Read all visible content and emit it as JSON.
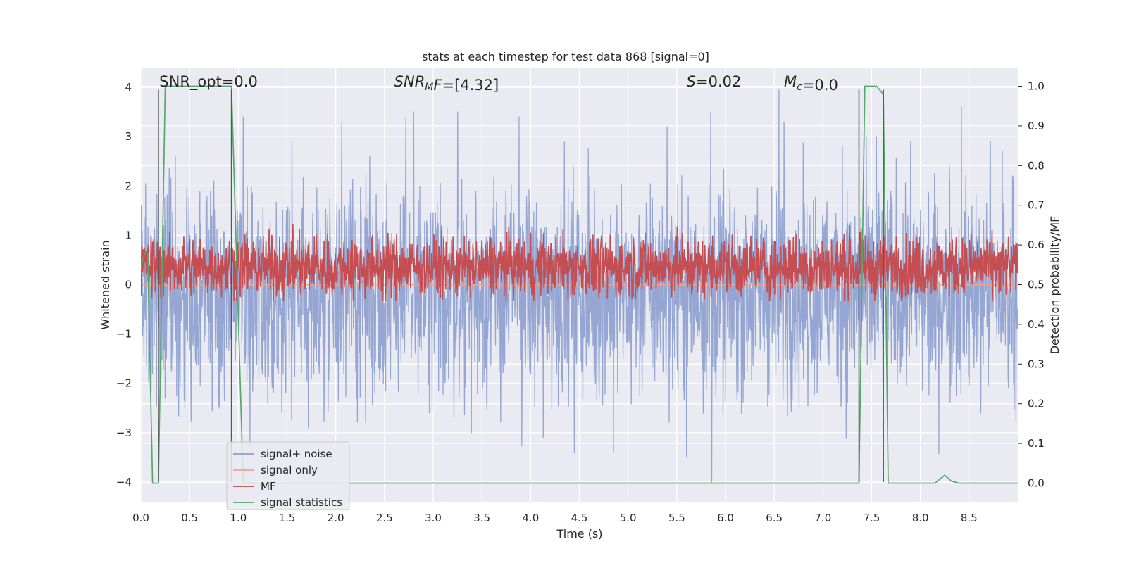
{
  "chart_data": {
    "type": "line",
    "title": "stats at each timestep for test data 868 [signal=0]",
    "xlabel": "Time (s)",
    "ylabel": "Whitened strain",
    "ylabel_right": "Detection probability/MF",
    "xlim": [
      0,
      9
    ],
    "ylim": [
      -4.4,
      4.4
    ],
    "ylim_right": [
      -0.047,
      1.047
    ],
    "x_ticks": [
      0.0,
      0.5,
      1.0,
      1.5,
      2.0,
      2.5,
      3.0,
      3.5,
      4.0,
      4.5,
      5.0,
      5.5,
      6.0,
      6.5,
      7.0,
      7.5,
      8.0,
      8.5
    ],
    "x_tick_labels": [
      "0.0",
      "0.5",
      "1.0",
      "1.5",
      "2.0",
      "2.5",
      "3.0",
      "3.5",
      "4.0",
      "4.5",
      "5.0",
      "5.5",
      "6.0",
      "6.5",
      "7.0",
      "7.5",
      "8.0",
      "8.5"
    ],
    "y_ticks": [
      -4,
      -3,
      -2,
      -1,
      0,
      1,
      2,
      3,
      4
    ],
    "y_tick_labels": [
      "−4",
      "−3",
      "−2",
      "−1",
      "0",
      "1",
      "2",
      "3",
      "4"
    ],
    "y_ticks_right": [
      0.0,
      0.1,
      0.2,
      0.3,
      0.4,
      0.5,
      0.6,
      0.7,
      0.8,
      0.9,
      1.0
    ],
    "y_tick_labels_right": [
      "0.0",
      "0.1",
      "0.2",
      "0.3",
      "0.4",
      "0.5",
      "0.6",
      "0.7",
      "0.8",
      "0.9",
      "1.0"
    ],
    "grid": true,
    "legend_position": "lower-left",
    "annotations": [
      {
        "id": "snr-opt",
        "plain": "SNR_opt=0.0",
        "x": 0.19
      },
      {
        "id": "snr-mf",
        "sym": "SNR",
        "sub": "M",
        "sym2": "F",
        "rest": "=[4.32]",
        "x": 2.6
      },
      {
        "id": "s-value",
        "sym": "S",
        "rest": "=0.02",
        "x": 5.6
      },
      {
        "id": "mc-value",
        "sym": "M",
        "sub": "c",
        "rest": "=0.0",
        "x": 6.6
      }
    ],
    "vlines": [
      0.18,
      0.93,
      7.37,
      7.62
    ],
    "series": [
      {
        "name": "signal+ noise",
        "color": "#8c9fcf",
        "axis": "left",
        "style": "noise",
        "center": -0.15,
        "spread": 1.05,
        "spikes": [
          [
            0.05,
            2.05
          ],
          [
            0.25,
            -2.3
          ],
          [
            0.45,
            -2.5
          ],
          [
            0.75,
            2.1
          ],
          [
            1.05,
            3.4
          ],
          [
            1.12,
            -3.3
          ],
          [
            1.55,
            2.9
          ],
          [
            1.72,
            -2.9
          ],
          [
            2.06,
            3.3
          ],
          [
            2.35,
            2.6
          ],
          [
            2.72,
            3.4
          ],
          [
            2.8,
            3.5
          ],
          [
            2.96,
            -2.6
          ],
          [
            3.25,
            3.5
          ],
          [
            3.39,
            -3.0
          ],
          [
            3.88,
            3.4
          ],
          [
            4.13,
            -3.1
          ],
          [
            4.45,
            -3.4
          ],
          [
            4.85,
            -3.4
          ],
          [
            5.4,
            3.2
          ],
          [
            5.6,
            -3.5
          ],
          [
            5.85,
            3.5
          ],
          [
            5.86,
            -4.0
          ],
          [
            6.55,
            3.95
          ],
          [
            6.6,
            3.3
          ],
          [
            7.2,
            2.8
          ],
          [
            7.55,
            3.0
          ],
          [
            7.9,
            2.9
          ],
          [
            8.3,
            2.4
          ],
          [
            8.42,
            3.6
          ],
          [
            8.62,
            -2.6
          ],
          [
            8.72,
            2.9
          ],
          [
            8.84,
            2.7
          ],
          [
            8.95,
            2.2
          ]
        ]
      },
      {
        "name": "signal only",
        "color": "#f2a488",
        "axis": "left",
        "style": "flat",
        "value": 0
      },
      {
        "name": "MF",
        "color": "#c44e52",
        "axis": "right",
        "style": "noise",
        "center": 0.545,
        "spread": 0.038,
        "spikes": [
          [
            0.08,
            0.6
          ],
          [
            0.44,
            0.62
          ],
          [
            1.8,
            0.625
          ],
          [
            3.58,
            0.62
          ],
          [
            7.75,
            0.62
          ],
          [
            7.28,
            0.615
          ]
        ]
      },
      {
        "name": "signal statistics",
        "color": "#55a868",
        "axis": "right",
        "style": "path",
        "x": [
          0.0,
          0.04,
          0.07,
          0.12,
          0.18,
          0.25,
          0.93,
          1.05,
          1.5,
          7.37,
          7.43,
          7.55,
          7.62,
          7.67,
          8.15,
          8.25,
          8.32,
          8.4,
          9.0
        ],
        "y": [
          0.54,
          0.58,
          0.58,
          0.0,
          0.0,
          1.0,
          1.0,
          0.0,
          0.0,
          0.0,
          1.0,
          1.0,
          0.98,
          0.0,
          0.0,
          0.02,
          0.005,
          0.0,
          0.0
        ]
      }
    ]
  }
}
